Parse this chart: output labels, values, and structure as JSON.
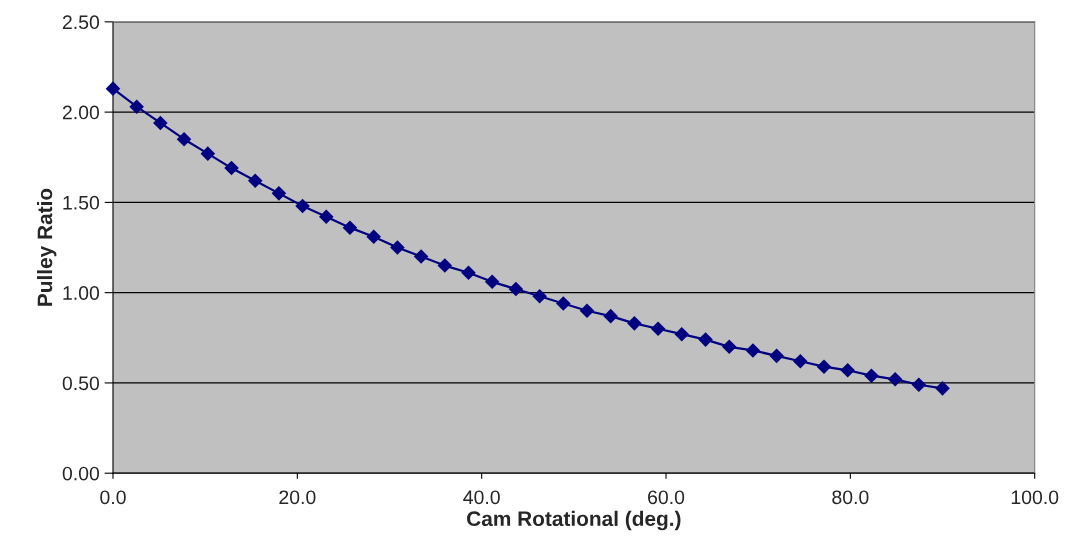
{
  "chart_data": {
    "type": "line",
    "xlabel": "Cam Rotational (deg.)",
    "ylabel": "Pulley Ratio",
    "x": [
      0,
      2.57,
      5.14,
      7.71,
      10.29,
      12.86,
      15.43,
      18,
      20.57,
      23.14,
      25.71,
      28.29,
      30.86,
      33.43,
      36,
      38.57,
      41.14,
      43.71,
      46.29,
      48.86,
      51.43,
      54,
      56.57,
      59.14,
      61.71,
      64.29,
      66.86,
      69.43,
      72,
      74.57,
      77.14,
      79.71,
      82.29,
      84.86,
      87.43,
      90
    ],
    "series": [
      {
        "color": "#000080",
        "values": [
          2.13,
          2.03,
          1.94,
          1.85,
          1.77,
          1.69,
          1.62,
          1.55,
          1.48,
          1.42,
          1.36,
          1.31,
          1.25,
          1.2,
          1.15,
          1.11,
          1.06,
          1.02,
          0.98,
          0.94,
          0.9,
          0.87,
          0.83,
          0.8,
          0.77,
          0.74,
          0.7,
          0.68,
          0.65,
          0.62,
          0.59,
          0.57,
          0.54,
          0.52,
          0.49,
          0.47
        ]
      }
    ],
    "xlim": [
      0,
      100
    ],
    "ylim": [
      0,
      2.5
    ],
    "xticks": [
      {
        "value": 0,
        "label": "0.0"
      },
      {
        "value": 20,
        "label": "20.0"
      },
      {
        "value": 40,
        "label": "40.0"
      },
      {
        "value": 60,
        "label": "60.0"
      },
      {
        "value": 80,
        "label": "80.0"
      },
      {
        "value": 100,
        "label": "100.0"
      }
    ],
    "yticks": [
      {
        "value": 0,
        "label": "0.00"
      },
      {
        "value": 0.5,
        "label": "0.50"
      },
      {
        "value": 1,
        "label": "1.00"
      },
      {
        "value": 1.5,
        "label": "1.50"
      },
      {
        "value": 2,
        "label": "2.00"
      },
      {
        "value": 2.5,
        "label": "2.50"
      }
    ],
    "grid": "y",
    "marker": "diamond",
    "line_style": "solid",
    "legend": false
  }
}
